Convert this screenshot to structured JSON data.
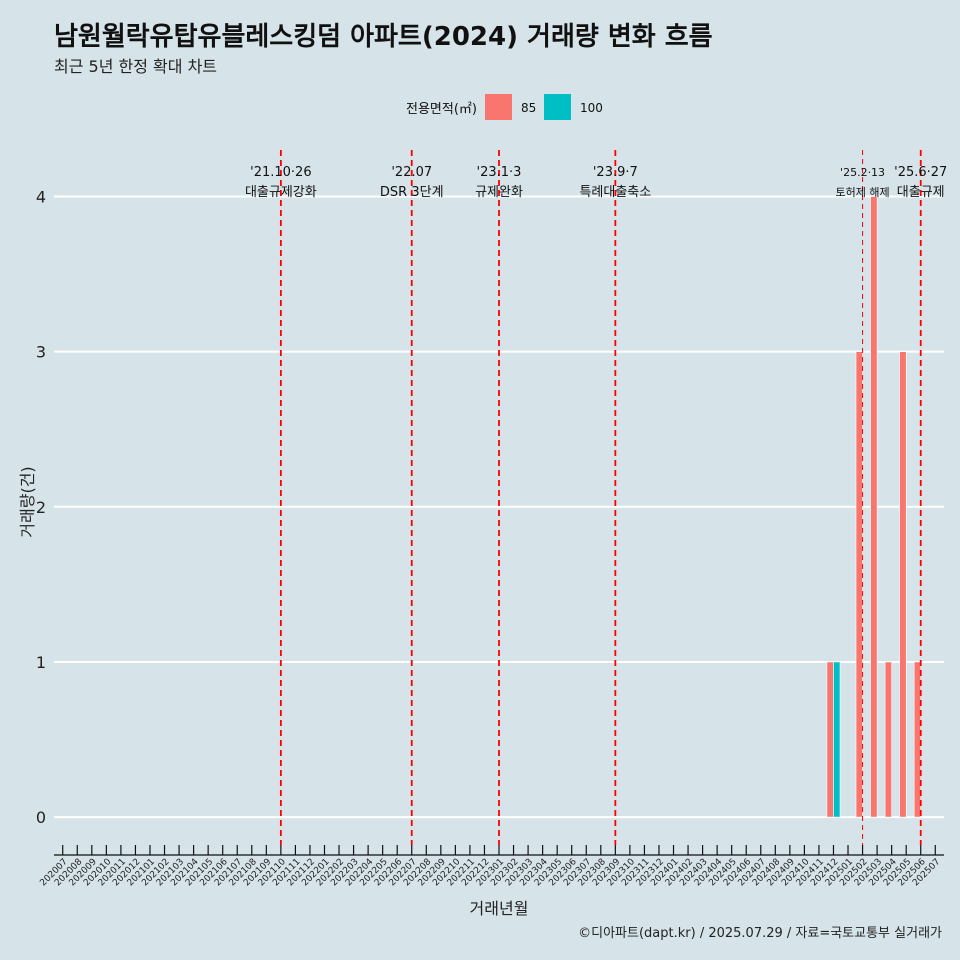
{
  "chart_data": {
    "type": "bar",
    "title": "남원월락유탑유블레스킹덤 아파트(2024) 거래량 변화 흐름",
    "subtitle": "최근 5년 한정 확대 차트",
    "xlabel": "거래년월",
    "ylabel": "거래량(건)",
    "ylim": [
      -0.18,
      4.3
    ],
    "yticks": [
      0,
      1,
      2,
      3,
      4
    ],
    "grid": true,
    "legend_title": "전용면적(㎡)",
    "legend_position": "top",
    "categories": [
      "202007",
      "202008",
      "202009",
      "202010",
      "202011",
      "202012",
      "202101",
      "202102",
      "202103",
      "202104",
      "202105",
      "202106",
      "202107",
      "202108",
      "202109",
      "202110",
      "202111",
      "202112",
      "202201",
      "202202",
      "202203",
      "202204",
      "202205",
      "202206",
      "202207",
      "202208",
      "202209",
      "202210",
      "202211",
      "202212",
      "202301",
      "202302",
      "202303",
      "202304",
      "202305",
      "202306",
      "202307",
      "202308",
      "202309",
      "202310",
      "202311",
      "202312",
      "202401",
      "202402",
      "202403",
      "202404",
      "202405",
      "202406",
      "202407",
      "202408",
      "202409",
      "202410",
      "202411",
      "202412",
      "202501",
      "202502",
      "202503",
      "202504",
      "202505",
      "202506",
      "202507"
    ],
    "series": [
      {
        "name": "85",
        "color": "#f8766d",
        "values": [
          0,
          0,
          0,
          0,
          0,
          0,
          0,
          0,
          0,
          0,
          0,
          0,
          0,
          0,
          0,
          0,
          0,
          0,
          0,
          0,
          0,
          0,
          0,
          0,
          0,
          0,
          0,
          0,
          0,
          0,
          0,
          0,
          0,
          0,
          0,
          0,
          0,
          0,
          0,
          0,
          0,
          0,
          0,
          0,
          0,
          0,
          0,
          0,
          0,
          0,
          0,
          0,
          0,
          1,
          0,
          3,
          4,
          1,
          3,
          1,
          0
        ]
      },
      {
        "name": "100",
        "color": "#00bfc4",
        "values": [
          0,
          0,
          0,
          0,
          0,
          0,
          0,
          0,
          0,
          0,
          0,
          0,
          0,
          0,
          0,
          0,
          0,
          0,
          0,
          0,
          0,
          0,
          0,
          0,
          0,
          0,
          0,
          0,
          0,
          0,
          0,
          0,
          0,
          0,
          0,
          0,
          0,
          0,
          0,
          0,
          0,
          0,
          0,
          0,
          0,
          0,
          0,
          0,
          0,
          0,
          0,
          0,
          0,
          1,
          0,
          0,
          0,
          0,
          0,
          0,
          0
        ]
      }
    ],
    "events": [
      {
        "category": "202110",
        "date": "'21.10·26",
        "label": "대출규제강화",
        "style": "bold"
      },
      {
        "category": "202207",
        "date": "'22.07",
        "label": "DSR 3단계",
        "style": "bold"
      },
      {
        "category": "202301",
        "date": "'23.1·3",
        "label": "규제완화",
        "style": "bold"
      },
      {
        "category": "202309",
        "date": "'23.9·7",
        "label": "특례대출축소",
        "style": "bold"
      },
      {
        "category": "202502",
        "date": "'25.2·13",
        "label": "토허제 해제",
        "style": "thin"
      },
      {
        "category": "202506",
        "date": "'25.6·27",
        "label": "대출규제",
        "style": "bold"
      }
    ],
    "event_color": "#ff0000"
  },
  "caption": "©디아파트(dapt.kr) / 2025.07.29 / 자료=국토교통부 실거래가"
}
